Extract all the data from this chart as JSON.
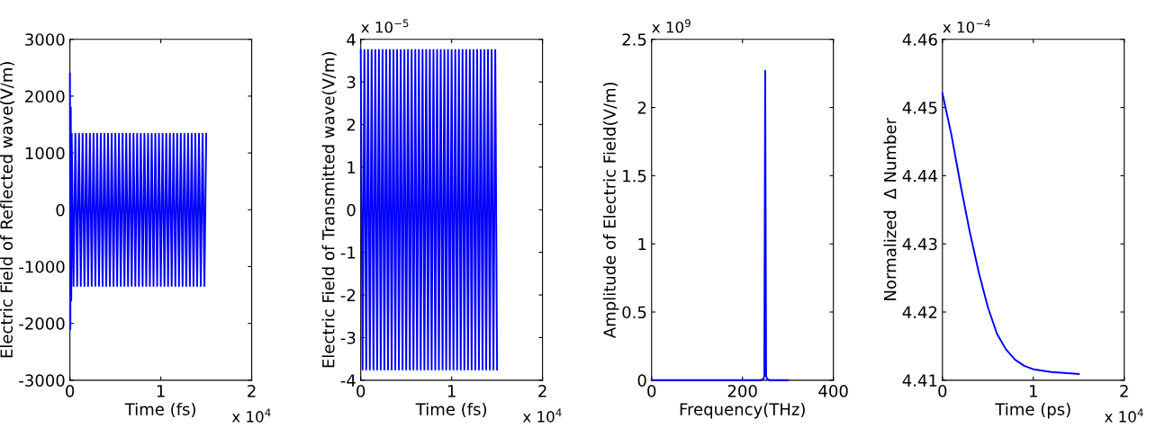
{
  "chart_data": [
    {
      "type": "line",
      "xlabel": "Time (fs)",
      "ylabel": "Electric Field of Reflected wave(V/m)",
      "annotations": [
        "x 10$^{4}$"
      ],
      "xlim": [
        0,
        2
      ],
      "xticks": [
        0,
        1,
        2
      ],
      "ylim": [
        -3000,
        3000
      ],
      "yticks": [
        -3000,
        -2000,
        -1000,
        0,
        1000,
        2000,
        3000
      ],
      "grid": false,
      "legend": false,
      "series": [
        {
          "color": "#0000ff",
          "x": [
            0,
            0.005,
            0.01,
            0.015,
            0.02,
            0.04,
            0.06,
            0.08,
            0.1,
            0.12,
            0.14,
            0.16,
            0.18,
            0.2,
            0.22,
            0.24,
            0.26,
            0.28,
            0.3,
            0.32,
            0.34,
            0.36,
            0.38,
            0.4,
            0.42,
            0.44,
            0.46,
            0.48,
            0.5,
            0.52,
            0.54,
            0.56,
            0.58,
            0.6,
            0.62,
            0.64,
            0.66,
            0.68,
            0.7,
            0.72,
            0.74,
            0.76,
            0.78,
            0.8,
            0.82,
            0.84,
            0.86,
            0.88,
            0.9,
            0.92,
            0.94,
            0.96,
            0.98,
            1.0,
            1.02,
            1.04,
            1.06,
            1.08,
            1.1,
            1.12,
            1.14,
            1.16,
            1.18,
            1.2,
            1.22,
            1.24,
            1.26,
            1.28,
            1.3,
            1.32,
            1.34,
            1.36,
            1.38,
            1.4,
            1.42,
            1.44,
            1.46,
            1.48,
            1.5
          ],
          "values": [
            2400,
            -2100,
            1800,
            -1600,
            1340,
            -1340,
            1340,
            -1340,
            1340,
            -1340,
            1340,
            -1340,
            1340,
            -1340,
            1340,
            -1340,
            1340,
            -1340,
            1340,
            -1340,
            1340,
            -1340,
            1340,
            -1340,
            1340,
            -1340,
            1340,
            -1340,
            1340,
            -1340,
            1340,
            -1340,
            1340,
            -1340,
            1340,
            -1340,
            1340,
            -1340,
            1340,
            -1340,
            1340,
            -1340,
            1340,
            -1340,
            1340,
            -1340,
            1340,
            -1340,
            1340,
            -1340,
            1340,
            -1340,
            1340,
            -1340,
            1340,
            -1340,
            1340,
            -1340,
            1340,
            -1340,
            1340,
            -1340,
            1340,
            -1340,
            1340,
            -1340,
            1340,
            -1340,
            1340,
            -1340,
            1340,
            -1340,
            1340,
            -1340,
            1340,
            -1340,
            1340,
            -1340,
            1340
          ]
        }
      ]
    },
    {
      "type": "line",
      "xlabel": "Time (fs)",
      "ylabel": "Electric Field of Transmitted wave(V/m)",
      "annotations": [
        "x 10$^{4}$",
        "x 10$^{−5}$"
      ],
      "xlim": [
        0,
        2
      ],
      "xticks": [
        0,
        1,
        2
      ],
      "ylim": [
        -4,
        4
      ],
      "yticks": [
        -4,
        -3,
        -2,
        -1,
        0,
        1,
        2,
        3,
        4
      ],
      "grid": false,
      "legend": false,
      "series": [
        {
          "color": "#0000ff",
          "x": [
            0,
            0.02,
            0.04,
            0.06,
            0.08,
            0.1,
            0.12,
            0.14,
            0.16,
            0.18,
            0.2,
            0.22,
            0.24,
            0.26,
            0.28,
            0.3,
            0.32,
            0.34,
            0.36,
            0.38,
            0.4,
            0.42,
            0.44,
            0.46,
            0.48,
            0.5,
            0.52,
            0.54,
            0.56,
            0.58,
            0.6,
            0.62,
            0.64,
            0.66,
            0.68,
            0.7,
            0.72,
            0.74,
            0.76,
            0.78,
            0.8,
            0.82,
            0.84,
            0.86,
            0.88,
            0.9,
            0.92,
            0.94,
            0.96,
            0.98,
            1.0,
            1.02,
            1.04,
            1.06,
            1.08,
            1.1,
            1.12,
            1.14,
            1.16,
            1.18,
            1.2,
            1.22,
            1.24,
            1.26,
            1.28,
            1.3,
            1.32,
            1.34,
            1.36,
            1.38,
            1.4,
            1.42,
            1.44,
            1.46,
            1.48,
            1.5
          ],
          "values": [
            3.75,
            -3.75,
            3.75,
            -3.75,
            3.75,
            -3.75,
            3.75,
            -3.75,
            3.75,
            -3.75,
            3.75,
            -3.75,
            3.75,
            -3.75,
            3.75,
            -3.75,
            3.75,
            -3.75,
            3.75,
            -3.75,
            3.75,
            -3.75,
            3.75,
            -3.75,
            3.75,
            -3.75,
            3.75,
            -3.75,
            3.75,
            -3.75,
            3.75,
            -3.75,
            3.75,
            -3.75,
            3.75,
            -3.75,
            3.75,
            -3.75,
            3.75,
            -3.75,
            3.75,
            -3.75,
            3.75,
            -3.75,
            3.75,
            -3.75,
            3.75,
            -3.75,
            3.75,
            -3.75,
            3.75,
            -3.75,
            3.75,
            -3.75,
            3.75,
            -3.75,
            3.75,
            -3.75,
            3.75,
            -3.75,
            3.75,
            -3.75,
            3.75,
            -3.75,
            3.75,
            -3.75,
            3.75,
            -3.75,
            3.75,
            -3.75,
            3.75,
            -3.75,
            3.75,
            -3.75,
            3.75,
            -3.75
          ]
        }
      ]
    },
    {
      "type": "line",
      "xlabel": "Frequency(THz)",
      "ylabel": "Amplitude of Electric Field(V/m)",
      "annotations": [
        "x 10$^{9}$"
      ],
      "xlim": [
        0,
        400
      ],
      "xticks": [
        0,
        200,
        400
      ],
      "ylim": [
        0,
        2.5
      ],
      "yticks": [
        0,
        0.5,
        1,
        1.5,
        2,
        2.5
      ],
      "grid": false,
      "legend": false,
      "series": [
        {
          "color": "#0000ff",
          "x": [
            0,
            240,
            246,
            248,
            250,
            252,
            254,
            260,
            300
          ],
          "values": [
            0,
            0,
            0.01,
            0.03,
            2.27,
            0.03,
            0.01,
            0,
            0
          ]
        }
      ]
    },
    {
      "type": "line",
      "xlabel": "Time (ps)",
      "ylabel": "Normalized  Δ Number",
      "annotations": [
        "x 10$^{4}$",
        "x 10$^{−4}$"
      ],
      "xlim": [
        0,
        2
      ],
      "xticks": [
        0,
        1,
        2
      ],
      "ylim": [
        4.41,
        4.46
      ],
      "yticks": [
        4.41,
        4.42,
        4.43,
        4.44,
        4.45,
        4.46
      ],
      "grid": false,
      "legend": false,
      "series": [
        {
          "color": "#0000ff",
          "x": [
            0,
            0.1,
            0.2,
            0.3,
            0.4,
            0.5,
            0.6,
            0.7,
            0.8,
            0.9,
            1.0,
            1.2,
            1.5
          ],
          "values": [
            4.4521,
            4.4459,
            4.4386,
            4.4318,
            4.4258,
            4.4207,
            4.4168,
            4.4145,
            4.413,
            4.4121,
            4.4116,
            4.4112,
            4.4109
          ]
        }
      ]
    }
  ]
}
